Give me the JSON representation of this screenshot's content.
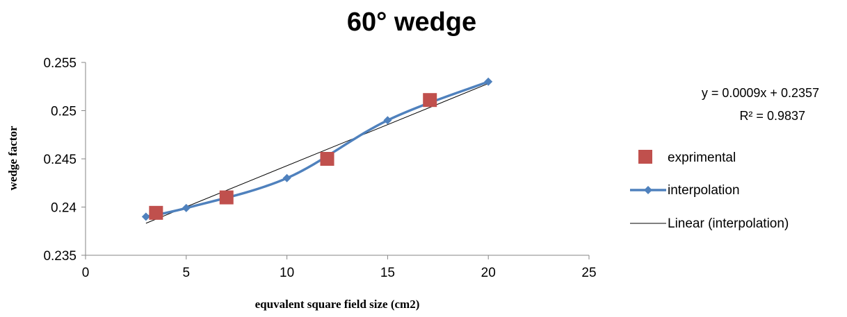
{
  "chart_data": {
    "type": "scatter",
    "title": "60° wedge",
    "xlabel": "equvalent square field size (cm2)",
    "ylabel": "wedge factor",
    "xlim": [
      0,
      25
    ],
    "ylim": [
      0.235,
      0.255
    ],
    "x_ticks": [
      "0",
      "5",
      "10",
      "15",
      "20",
      "25"
    ],
    "y_ticks": [
      "0.235",
      "0.24",
      "0.245",
      "0.25",
      "0.255"
    ],
    "grid": false,
    "legend_position": "right",
    "series": [
      {
        "name": "exprimental",
        "kind": "marker-square",
        "color": "#c0504d",
        "points": [
          [
            3.5,
            0.2394
          ],
          [
            7,
            0.241
          ],
          [
            12,
            0.245
          ],
          [
            17.1,
            0.2511
          ]
        ]
      },
      {
        "name": "interpolation",
        "kind": "smooth-line-diamond",
        "color": "#4f81bd",
        "points": [
          [
            3,
            0.239
          ],
          [
            5,
            0.2399
          ],
          [
            10,
            0.243
          ],
          [
            15,
            0.249
          ],
          [
            20,
            0.253
          ]
        ]
      },
      {
        "name": "Linear (interpolation)",
        "kind": "trendline",
        "color": "#000000",
        "slope": 0.0009,
        "intercept": 0.2357,
        "points": [
          [
            3,
            0.23832
          ],
          [
            20,
            0.25281
          ]
        ]
      }
    ],
    "equation": "y = 0.0009x + 0.2357",
    "r_squared": "R² = 0.9837"
  }
}
